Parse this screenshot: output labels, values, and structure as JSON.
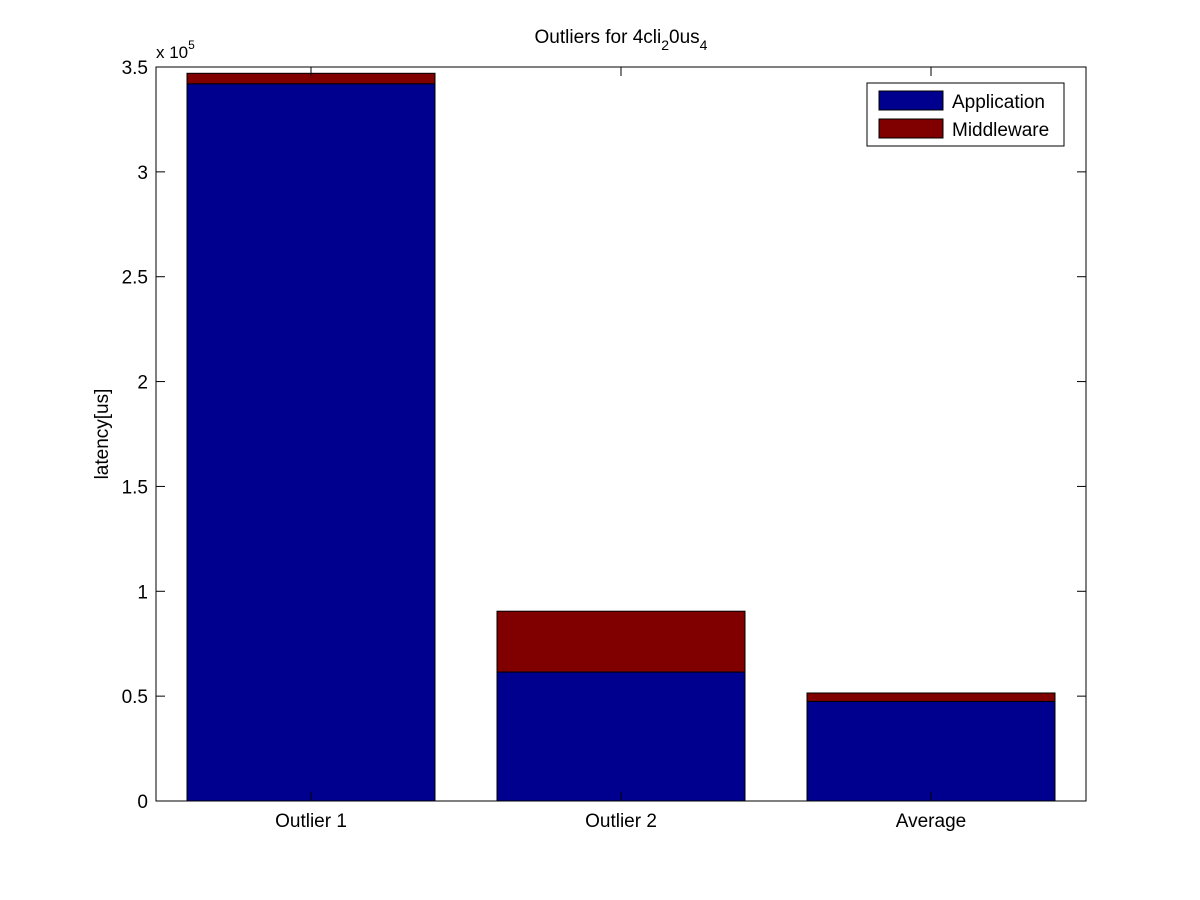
{
  "chart_data": {
    "type": "bar",
    "stacked": true,
    "title": {
      "base": "Outliers for 4cli",
      "sub1": "2",
      "mid": "0us",
      "sub2": "4"
    },
    "xlabel": "",
    "ylabel": "latency[us]",
    "y_exponent": {
      "prefix": "x 10",
      "power": "5"
    },
    "ylim": [
      0,
      3.5
    ],
    "yticks": [
      0,
      0.5,
      1,
      1.5,
      2,
      2.5,
      3,
      3.5
    ],
    "ytick_labels": [
      "0",
      "0.5",
      "1",
      "1.5",
      "2",
      "2.5",
      "3",
      "3.5"
    ],
    "categories": [
      "Outlier 1",
      "Outlier 2",
      "Average"
    ],
    "series": [
      {
        "name": "Application",
        "color": "#00008f",
        "values": [
          3.42,
          0.615,
          0.475
        ]
      },
      {
        "name": "Middleware",
        "color": "#800000",
        "values": [
          0.05,
          0.29,
          0.04
        ]
      }
    ],
    "legend": {
      "position": "top-right"
    },
    "grid": false
  }
}
